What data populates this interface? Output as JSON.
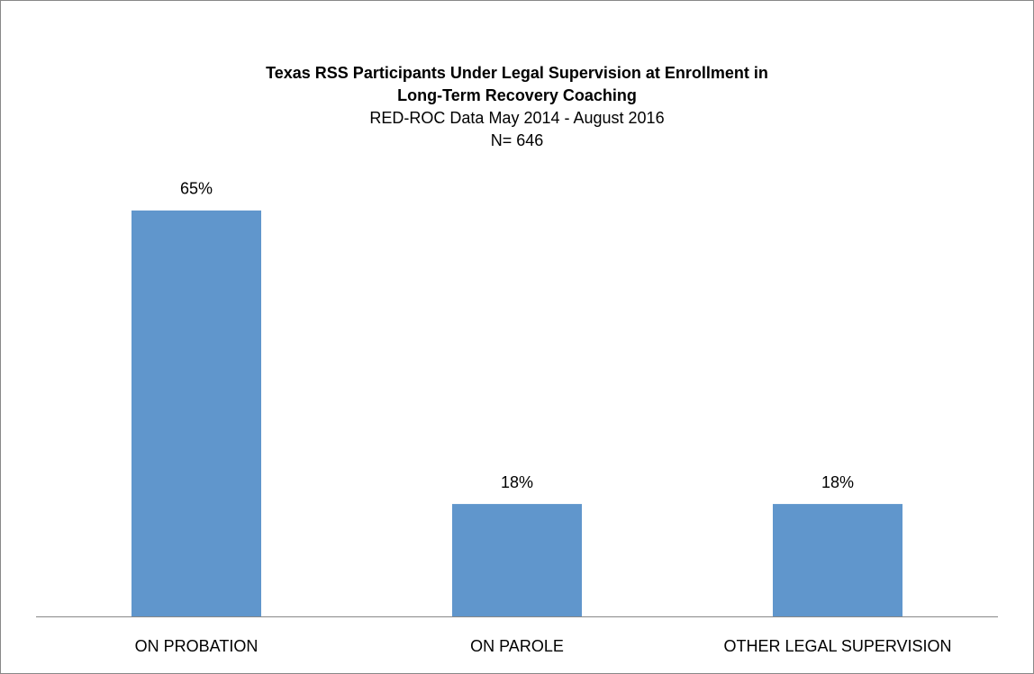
{
  "chart_data": {
    "type": "bar",
    "title": [
      "Texas RSS Participants Under Legal Supervision at Enrollment in",
      "Long-Term Recovery Coaching"
    ],
    "subtitle": [
      "RED-ROC Data May 2014 - August 2016",
      "N= 646"
    ],
    "categories": [
      "ON PROBATION",
      "ON PAROLE",
      "OTHER LEGAL SUPERVISION"
    ],
    "values": [
      65,
      18,
      18
    ],
    "value_labels": [
      "65%",
      "18%",
      "18%"
    ],
    "color": "#6096cc"
  }
}
